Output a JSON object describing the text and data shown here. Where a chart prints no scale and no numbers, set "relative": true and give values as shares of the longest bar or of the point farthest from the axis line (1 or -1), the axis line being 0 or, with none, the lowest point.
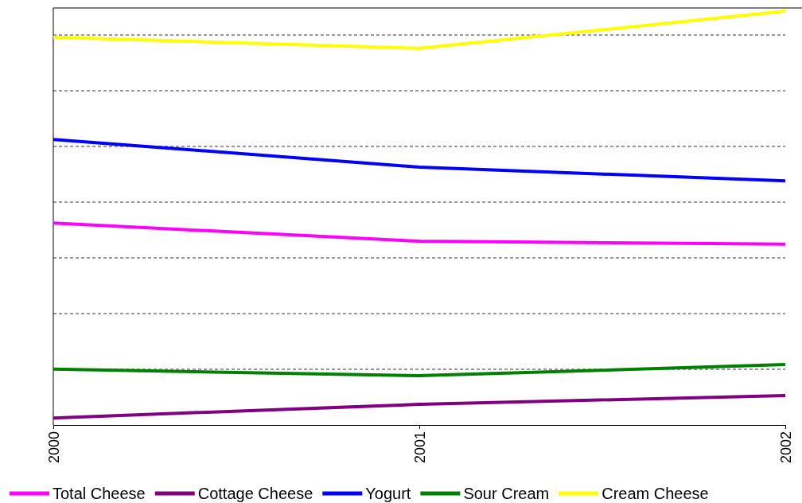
{
  "chart_data": {
    "type": "line",
    "relative": true,
    "categories": [
      "2000",
      "2001",
      "2002"
    ],
    "series": [
      {
        "name": "Total Cheese",
        "color": "#ff00ff",
        "values": [
          0.488,
          0.444,
          0.437
        ]
      },
      {
        "name": "Cottage Cheese",
        "color": "#800080",
        "values": [
          0.017,
          0.05,
          0.071
        ]
      },
      {
        "name": "Yogurt",
        "color": "#0000ff",
        "values": [
          0.69,
          0.623,
          0.59
        ]
      },
      {
        "name": "Sour Cream",
        "color": "#008000",
        "values": [
          0.135,
          0.119,
          0.146
        ]
      },
      {
        "name": "Cream Cheese",
        "color": "#ffff00",
        "values": [
          0.937,
          0.91,
          1
        ]
      }
    ],
    "grid": "y",
    "legend": "bottom",
    "marker": "none",
    "line_style": "solid"
  }
}
